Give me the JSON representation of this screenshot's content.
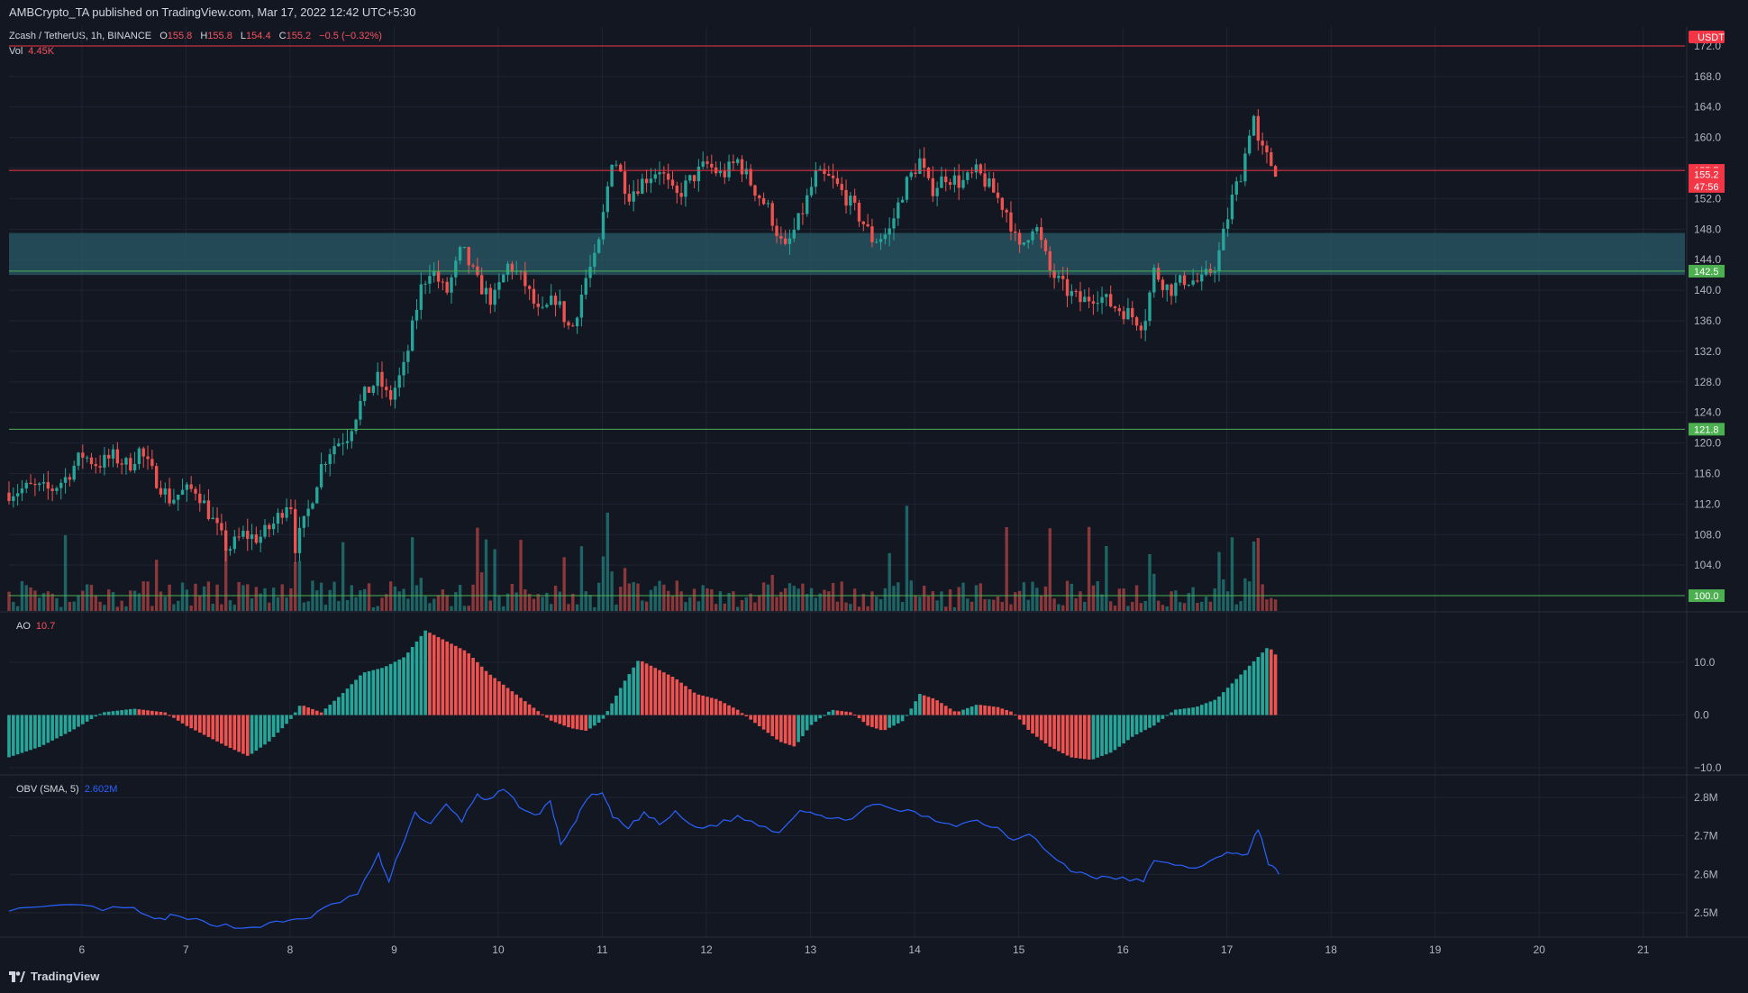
{
  "header": {
    "published": "AMBCrypto_TA published on TradingView.com, Mar 17, 2022 12:42 UTC+5:30"
  },
  "legend": {
    "symbol": "Zcash / TetherUS, 1h, BINANCE",
    "open_label": "O",
    "open": "155.8",
    "high_label": "H",
    "high": "155.8",
    "low_label": "L",
    "low": "154.4",
    "close_label": "C",
    "close": "155.2",
    "change": "−0.5 (−0.32%)",
    "vol_label": "Vol",
    "vol": "4.45K",
    "ao_label": "AO",
    "ao": "10.7",
    "obv_label": "OBV (SMA, 5)",
    "obv": "2.602M"
  },
  "currency": "USDT",
  "footer": {
    "brand": "TradingView"
  },
  "colors": {
    "background": "#131722",
    "up": "#26a69a",
    "down": "#ef5350",
    "resistance": "#f23645",
    "support": "#4caf50",
    "zone": "#2a5f6b",
    "obv": "#2962ff"
  },
  "chart_data": [
    {
      "type": "candlestick",
      "title": "Zcash / TetherUS, 1h, BINANCE",
      "x_tick_labels": [
        "6",
        "7",
        "8",
        "9",
        "10",
        "11",
        "12",
        "13",
        "14",
        "15",
        "16",
        "17",
        "18",
        "19",
        "20",
        "21"
      ],
      "y_tick_labels": [
        "100.0",
        "104.0",
        "108.0",
        "112.0",
        "116.0",
        "120.0",
        "124.0",
        "128.0",
        "132.0",
        "136.0",
        "140.0",
        "144.0",
        "148.0",
        "152.0",
        "156.0",
        "160.0",
        "164.0",
        "168.0",
        "172.0"
      ],
      "ylim": [
        98,
        174
      ],
      "price_path": [
        [
          5.3,
          113.5
        ],
        [
          5.5,
          114.2
        ],
        [
          5.7,
          113.8
        ],
        [
          5.85,
          115.5
        ],
        [
          6.0,
          118.5
        ],
        [
          6.15,
          117.2
        ],
        [
          6.3,
          118.2
        ],
        [
          6.45,
          117.0
        ],
        [
          6.55,
          119.0
        ],
        [
          6.7,
          115.5
        ],
        [
          6.85,
          112.5
        ],
        [
          6.95,
          113.5
        ],
        [
          7.1,
          114.0
        ],
        [
          7.25,
          110.0
        ],
        [
          7.4,
          106.0
        ],
        [
          7.55,
          108.0
        ],
        [
          7.7,
          107.5
        ],
        [
          7.85,
          109.5
        ],
        [
          8.0,
          113.0
        ],
        [
          8.05,
          106.5
        ],
        [
          8.15,
          110.0
        ],
        [
          8.3,
          117.0
        ],
        [
          8.4,
          119.5
        ],
        [
          8.55,
          121.0
        ],
        [
          8.7,
          126.0
        ],
        [
          8.85,
          128.5
        ],
        [
          8.95,
          125.5
        ],
        [
          9.1,
          130.0
        ],
        [
          9.25,
          140.0
        ],
        [
          9.35,
          143.0
        ],
        [
          9.5,
          139.5
        ],
        [
          9.65,
          145.5
        ],
        [
          9.8,
          141.0
        ],
        [
          9.95,
          138.5
        ],
        [
          10.1,
          143.5
        ],
        [
          10.25,
          141.0
        ],
        [
          10.4,
          136.5
        ],
        [
          10.55,
          139.0
        ],
        [
          10.7,
          134.5
        ],
        [
          10.85,
          142.0
        ],
        [
          10.95,
          144.5
        ],
        [
          11.1,
          158.0
        ],
        [
          11.25,
          152.5
        ],
        [
          11.4,
          154.5
        ],
        [
          11.55,
          156.0
        ],
        [
          11.7,
          152.0
        ],
        [
          11.85,
          154.5
        ],
        [
          12.0,
          156.5
        ],
        [
          12.15,
          155.0
        ],
        [
          12.3,
          157.0
        ],
        [
          12.45,
          153.5
        ],
        [
          12.6,
          150.5
        ],
        [
          12.75,
          145.0
        ],
        [
          12.9,
          149.5
        ],
        [
          13.05,
          155.0
        ],
        [
          13.2,
          154.5
        ],
        [
          13.35,
          152.0
        ],
        [
          13.5,
          149.0
        ],
        [
          13.6,
          146.5
        ],
        [
          13.75,
          147.5
        ],
        [
          13.9,
          153.5
        ],
        [
          14.05,
          157.0
        ],
        [
          14.15,
          153.0
        ],
        [
          14.3,
          155.0
        ],
        [
          14.45,
          154.0
        ],
        [
          14.6,
          155.5
        ],
        [
          14.75,
          153.0
        ],
        [
          14.9,
          150.0
        ],
        [
          15.0,
          145.0
        ],
        [
          15.15,
          149.0
        ],
        [
          15.3,
          142.5
        ],
        [
          15.45,
          140.0
        ],
        [
          15.6,
          138.5
        ],
        [
          15.75,
          139.5
        ],
        [
          15.9,
          138.0
        ],
        [
          16.05,
          137.0
        ],
        [
          16.2,
          135.5
        ],
        [
          16.3,
          142.5
        ],
        [
          16.45,
          140.0
        ],
        [
          16.6,
          141.5
        ],
        [
          16.75,
          141.0
        ],
        [
          16.9,
          143.5
        ],
        [
          17.05,
          152.0
        ],
        [
          17.15,
          156.0
        ],
        [
          17.25,
          163.5
        ],
        [
          17.3,
          159.0
        ],
        [
          17.4,
          157.0
        ],
        [
          17.5,
          155.2
        ]
      ],
      "horizontal_levels": [
        {
          "value": 172,
          "style": "resistance"
        },
        {
          "value": 155.7,
          "style": "resistance"
        },
        {
          "value": 142.5,
          "style": "support"
        },
        {
          "value": 121.8,
          "style": "support"
        },
        {
          "value": 100.0,
          "style": "support"
        }
      ],
      "zone": {
        "from": 142.0,
        "to": 147.5
      },
      "price_labels": [
        {
          "text": "155.7",
          "value": 155.7,
          "style": "resistance"
        },
        {
          "text": "155.2",
          "value": 155.2,
          "style": "resistance"
        },
        {
          "text": "47:56",
          "value": 153.6,
          "style": "resistance"
        },
        {
          "text": "142.5",
          "value": 142.5,
          "style": "support"
        },
        {
          "text": "121.8",
          "value": 121.8,
          "style": "support"
        },
        {
          "text": "100.0",
          "value": 100.0,
          "style": "support"
        }
      ]
    },
    {
      "type": "bar",
      "title": "AO",
      "y_tick_labels": [
        "10.0",
        "0.0",
        "−10.0"
      ],
      "ylim": [
        -11,
        18
      ],
      "x": [
        5.3,
        5.6,
        5.9,
        6.2,
        6.5,
        6.8,
        7.0,
        7.2,
        7.4,
        7.6,
        7.8,
        8.0,
        8.1,
        8.3,
        8.5,
        8.7,
        8.9,
        9.1,
        9.3,
        9.5,
        9.7,
        9.9,
        10.1,
        10.3,
        10.5,
        10.7,
        10.85,
        11.0,
        11.2,
        11.35,
        11.5,
        11.7,
        11.9,
        12.1,
        12.3,
        12.5,
        12.7,
        12.85,
        13.0,
        13.2,
        13.4,
        13.55,
        13.7,
        13.9,
        14.05,
        14.2,
        14.4,
        14.6,
        14.8,
        14.95,
        15.1,
        15.3,
        15.5,
        15.7,
        15.9,
        16.1,
        16.3,
        16.5,
        16.7,
        16.9,
        17.1,
        17.25,
        17.4,
        17.5
      ],
      "values": [
        -8,
        -6,
        -3,
        0.5,
        1.2,
        0.5,
        -2,
        -4,
        -6,
        -7.8,
        -5,
        -1,
        2,
        0.5,
        4,
        8,
        9,
        11,
        16,
        14,
        12,
        8,
        5,
        2,
        -1,
        -2.5,
        -3,
        -1,
        6,
        10.5,
        9,
        7,
        4,
        3,
        1,
        -2,
        -5,
        -6,
        -2,
        1,
        0.5,
        -2,
        -3,
        -1,
        4,
        3,
        0.5,
        2,
        1.5,
        0.5,
        -3,
        -6,
        -8,
        -8.5,
        -7,
        -4,
        -2,
        1,
        1.5,
        3,
        7,
        10,
        13,
        10.7
      ]
    },
    {
      "type": "line",
      "title": "OBV (SMA, 5)",
      "y_tick_labels": [
        "2.8M",
        "2.7M",
        "2.6M",
        "2.5M"
      ],
      "ylim": [
        2.46,
        2.84
      ],
      "series": [
        {
          "x": [
            5.3,
            5.6,
            5.9,
            6.2,
            6.5,
            6.7,
            6.85,
            7.1,
            7.3,
            7.55,
            7.8,
            8.0,
            8.2,
            8.4,
            8.65,
            8.85,
            8.95,
            9.05,
            9.2,
            9.35,
            9.5,
            9.65,
            9.8,
            9.9,
            10.05,
            10.2,
            10.35,
            10.5,
            10.6,
            10.75,
            10.85,
            11.0,
            11.1,
            11.25,
            11.4,
            11.55,
            11.7,
            11.9,
            12.1,
            12.3,
            12.5,
            12.7,
            12.9,
            13.05,
            13.2,
            13.4,
            13.6,
            13.8,
            14.0,
            14.2,
            14.4,
            14.6,
            14.8,
            14.95,
            15.1,
            15.3,
            15.5,
            15.65,
            15.8,
            16.0,
            16.2,
            16.3,
            16.5,
            16.7,
            16.9,
            17.05,
            17.2,
            17.3,
            17.4,
            17.5
          ],
          "values": [
            2.51,
            2.51,
            2.52,
            2.51,
            2.51,
            2.48,
            2.49,
            2.48,
            2.47,
            2.46,
            2.47,
            2.48,
            2.49,
            2.52,
            2.55,
            2.65,
            2.58,
            2.66,
            2.76,
            2.73,
            2.78,
            2.74,
            2.81,
            2.79,
            2.82,
            2.78,
            2.75,
            2.79,
            2.68,
            2.74,
            2.8,
            2.81,
            2.75,
            2.72,
            2.76,
            2.73,
            2.76,
            2.72,
            2.73,
            2.75,
            2.73,
            2.71,
            2.77,
            2.76,
            2.74,
            2.75,
            2.78,
            2.77,
            2.76,
            2.74,
            2.73,
            2.74,
            2.72,
            2.69,
            2.71,
            2.65,
            2.61,
            2.6,
            2.59,
            2.59,
            2.58,
            2.64,
            2.62,
            2.62,
            2.64,
            2.66,
            2.65,
            2.72,
            2.63,
            2.6
          ]
        }
      ]
    }
  ]
}
